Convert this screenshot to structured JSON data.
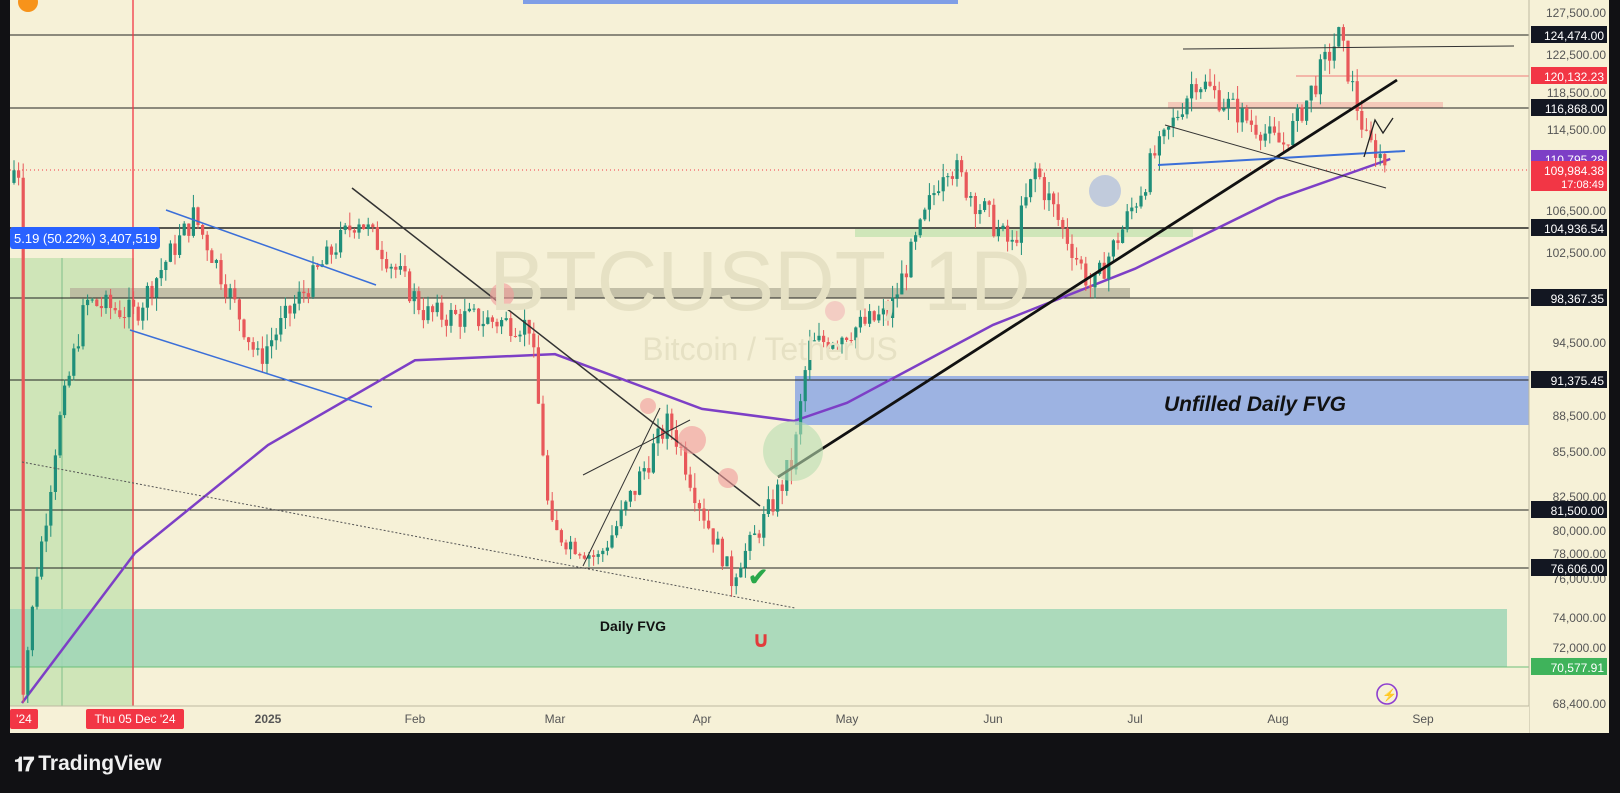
{
  "brand": "TradingView",
  "chart_data": {
    "type": "candlestick",
    "symbol_watermark": "BTCUSDT, 1D",
    "symbol_watermark_sub": "Bitcoin / TetherUS",
    "colors": {
      "background": "#f6f1d7",
      "up_candle": "#1f8f7a",
      "down_candle": "#e8585a",
      "moving_average": "#7d3fc6",
      "fvg_unfilled": "#7f9ee6",
      "fvg_daily": "#9fd6b6",
      "price_label": "#f23645",
      "level_label": "#131722"
    },
    "y_axis": {
      "ticks": [
        "127,500.00",
        "122,500.00",
        "118,500.00",
        "114,500.00",
        "106,500.00",
        "102,500.00",
        "94,500.00",
        "88,500.00",
        "85,500.00",
        "82,500.00",
        "80,000.00",
        "78,000.00",
        "76,000.00",
        "74,000.00",
        "72,000.00",
        "68,400.00"
      ],
      "tick_values": [
        127500,
        122500,
        118500,
        114500,
        106500,
        102500,
        94500,
        88500,
        85500,
        82500,
        80000,
        78000,
        76000,
        74000,
        72000,
        68400
      ]
    },
    "x_axis": {
      "labels": [
        "'24",
        "Thu 05 Dec '24",
        "2025",
        "Feb",
        "Mar",
        "Apr",
        "May",
        "Jun",
        "Jul",
        "Aug",
        "Sep"
      ],
      "dates": [
        "2024-11-05",
        "2024-12-05",
        "2025-01-01",
        "2025-02-01",
        "2025-03-01",
        "2025-04-01",
        "2025-05-01",
        "2025-06-01",
        "2025-07-01",
        "2025-08-01",
        "2025-09-01"
      ]
    },
    "current_price": {
      "value": "109,984.38",
      "countdown": "17:08:49"
    },
    "ma_value": "110,795.28",
    "levels": [
      {
        "price": 124474,
        "label": "124,474.00",
        "style": "dark"
      },
      {
        "price": 120132.23,
        "label": "120,132.23",
        "style": "red"
      },
      {
        "price": 116868,
        "label": "116,868.00",
        "style": "dark"
      },
      {
        "price": 104936.54,
        "label": "104,936.54",
        "style": "dark"
      },
      {
        "price": 98367.35,
        "label": "98,367.35",
        "style": "dark"
      },
      {
        "price": 91375.45,
        "label": "91,375.45",
        "style": "dark"
      },
      {
        "price": 81500,
        "label": "81,500.00",
        "style": "dark"
      },
      {
        "price": 76606,
        "label": "76,606.00",
        "style": "dark"
      },
      {
        "price": 70577.91,
        "label": "70,577.91",
        "style": "green"
      }
    ],
    "annotations": {
      "unfilled_fvg": "Unfilled Daily FVG",
      "daily_fvg": "Daily FVG",
      "measure_label": "5.19 (50.22%) 3,407,519",
      "fvg_range": [
        88000,
        91375.45
      ],
      "daily_fvg_range": [
        70577.91,
        74800
      ]
    },
    "moving_average": [
      [
        "2024-11-05",
        67000
      ],
      [
        "2024-12-05",
        78000
      ],
      [
        "2025-01-01",
        86000
      ],
      [
        "2025-02-01",
        93000
      ],
      [
        "2025-03-01",
        93500
      ],
      [
        "2025-04-01",
        89000
      ],
      [
        "2025-04-20",
        88000
      ],
      [
        "2025-05-01",
        89500
      ],
      [
        "2025-06-01",
        96000
      ],
      [
        "2025-07-01",
        101000
      ],
      [
        "2025-08-01",
        107500
      ],
      [
        "2025-08-25",
        110795.28
      ]
    ],
    "price_path": [
      [
        "2024-11-05",
        69000
      ],
      [
        "2024-11-15",
        88000
      ],
      [
        "2024-11-22",
        98000
      ],
      [
        "2024-12-05",
        97000
      ],
      [
        "2024-12-17",
        106000
      ],
      [
        "2024-12-30",
        93000
      ],
      [
        "2025-01-20",
        106000
      ],
      [
        "2025-02-03",
        97000
      ],
      [
        "2025-02-24",
        96000
      ],
      [
        "2025-02-28",
        80000
      ],
      [
        "2025-03-10",
        77500
      ],
      [
        "2025-03-25",
        88000
      ],
      [
        "2025-04-07",
        76000
      ],
      [
        "2025-04-20",
        85000
      ],
      [
        "2025-04-23",
        94000
      ],
      [
        "2025-05-10",
        97000
      ],
      [
        "2025-05-22",
        111000
      ],
      [
        "2025-06-05",
        103000
      ],
      [
        "2025-06-10",
        110000
      ],
      [
        "2025-06-22",
        99000
      ],
      [
        "2025-07-03",
        109000
      ],
      [
        "2025-07-14",
        120000
      ],
      [
        "2025-08-02",
        112500
      ],
      [
        "2025-08-14",
        124474
      ],
      [
        "2025-08-20",
        113000
      ],
      [
        "2025-08-25",
        109984.38
      ]
    ]
  }
}
